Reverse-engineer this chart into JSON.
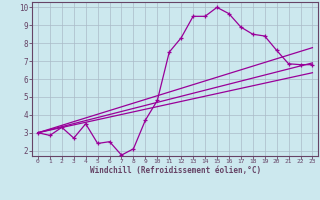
{
  "title": "",
  "xlabel": "Windchill (Refroidissement éolien,°C)",
  "bg_color": "#cce8ee",
  "line_color": "#990099",
  "grid_color": "#aabbc8",
  "axis_color": "#664466",
  "xlim": [
    -0.5,
    23.5
  ],
  "ylim": [
    1.7,
    10.3
  ],
  "xticks": [
    0,
    1,
    2,
    3,
    4,
    5,
    6,
    7,
    8,
    9,
    10,
    11,
    12,
    13,
    14,
    15,
    16,
    17,
    18,
    19,
    20,
    21,
    22,
    23
  ],
  "yticks": [
    2,
    3,
    4,
    5,
    6,
    7,
    8,
    9,
    10
  ],
  "line1_x": [
    0,
    1,
    2,
    3,
    4,
    5,
    6,
    7,
    8,
    9,
    10,
    11,
    12,
    13,
    14,
    15,
    16,
    17,
    18,
    19,
    20,
    21,
    22,
    23
  ],
  "line1_y": [
    3.0,
    2.85,
    3.3,
    2.7,
    3.5,
    2.4,
    2.5,
    1.75,
    2.1,
    3.7,
    4.8,
    7.5,
    8.3,
    9.5,
    9.5,
    10.0,
    9.65,
    8.9,
    8.5,
    8.4,
    7.6,
    6.85,
    6.8,
    6.8
  ],
  "line2_x": [
    0,
    23
  ],
  "line2_y": [
    3.0,
    6.35
  ],
  "line3_x": [
    0,
    23
  ],
  "line3_y": [
    3.0,
    7.75
  ],
  "line4_x": [
    0,
    23
  ],
  "line4_y": [
    3.0,
    6.9
  ]
}
